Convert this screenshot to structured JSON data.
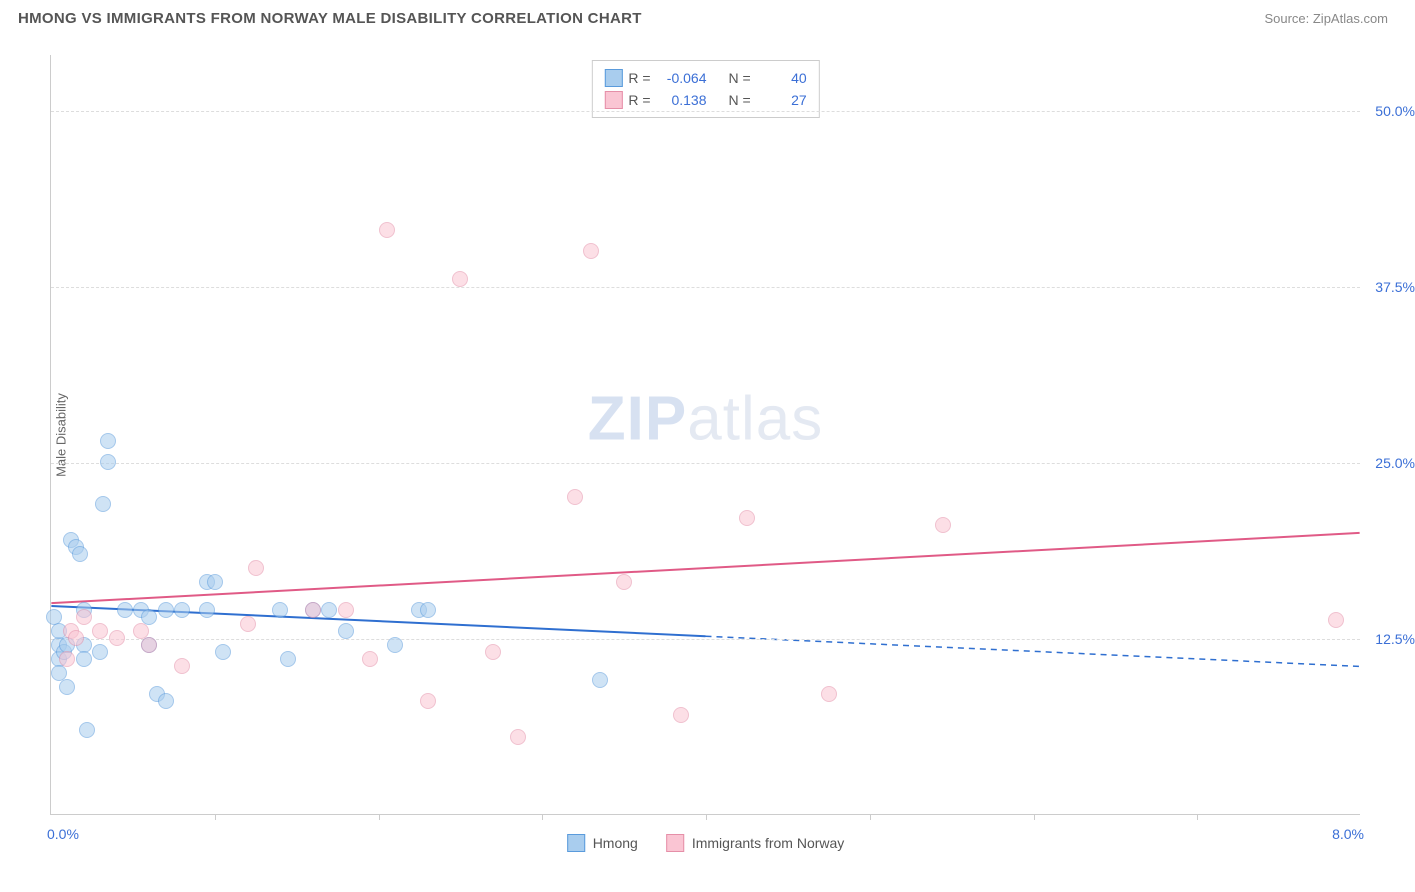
{
  "header": {
    "title": "HMONG VS IMMIGRANTS FROM NORWAY MALE DISABILITY CORRELATION CHART",
    "source": "Source: ZipAtlas.com"
  },
  "watermark": {
    "part1": "ZIP",
    "part2": "atlas"
  },
  "chart": {
    "type": "scatter",
    "y_axis_title": "Male Disability",
    "xlim": [
      0.0,
      8.0
    ],
    "ylim": [
      0.0,
      54.0
    ],
    "x_label_min": "0.0%",
    "x_label_max": "8.0%",
    "y_gridlines": [
      12.5,
      25.0,
      37.5,
      50.0
    ],
    "y_tick_labels": [
      "12.5%",
      "25.0%",
      "37.5%",
      "50.0%"
    ],
    "x_ticks": [
      1.0,
      2.0,
      3.0,
      4.0,
      5.0,
      6.0,
      7.0
    ],
    "background_color": "#ffffff",
    "grid_color": "#dddddd",
    "axis_color": "#cccccc",
    "label_color": "#3b6fd6",
    "point_radius": 8,
    "series": [
      {
        "key": "hmong",
        "label": "Hmong",
        "fill": "#a9cdee",
        "stroke": "#5a9bdc",
        "fill_opacity": 0.55,
        "R": "-0.064",
        "N": "40",
        "trend": {
          "y_at_xmin": 14.8,
          "y_at_xmax": 10.5,
          "solid_until_x": 4.0,
          "stroke": "#2f6fd0",
          "width": 2
        },
        "points": [
          [
            0.02,
            14.0
          ],
          [
            0.05,
            12.0
          ],
          [
            0.05,
            11.0
          ],
          [
            0.05,
            10.0
          ],
          [
            0.05,
            13.0
          ],
          [
            0.08,
            11.5
          ],
          [
            0.1,
            9.0
          ],
          [
            0.1,
            12.0
          ],
          [
            0.12,
            19.5
          ],
          [
            0.15,
            19.0
          ],
          [
            0.18,
            18.5
          ],
          [
            0.2,
            14.5
          ],
          [
            0.2,
            12.0
          ],
          [
            0.2,
            11.0
          ],
          [
            0.22,
            6.0
          ],
          [
            0.3,
            11.5
          ],
          [
            0.32,
            22.0
          ],
          [
            0.35,
            26.5
          ],
          [
            0.35,
            25.0
          ],
          [
            0.45,
            14.5
          ],
          [
            0.55,
            14.5
          ],
          [
            0.6,
            14.0
          ],
          [
            0.6,
            12.0
          ],
          [
            0.65,
            8.5
          ],
          [
            0.7,
            14.5
          ],
          [
            0.7,
            8.0
          ],
          [
            0.8,
            14.5
          ],
          [
            0.95,
            14.5
          ],
          [
            0.95,
            16.5
          ],
          [
            1.0,
            16.5
          ],
          [
            1.05,
            11.5
          ],
          [
            1.4,
            14.5
          ],
          [
            1.45,
            11.0
          ],
          [
            1.6,
            14.5
          ],
          [
            1.7,
            14.5
          ],
          [
            1.8,
            13.0
          ],
          [
            2.1,
            12.0
          ],
          [
            2.25,
            14.5
          ],
          [
            2.3,
            14.5
          ],
          [
            3.35,
            9.5
          ]
        ]
      },
      {
        "key": "norway",
        "label": "Immigrants from Norway",
        "fill": "#fac5d3",
        "stroke": "#e58fa8",
        "fill_opacity": 0.55,
        "R": "0.138",
        "N": "27",
        "trend": {
          "y_at_xmin": 15.0,
          "y_at_xmax": 20.0,
          "solid_until_x": 8.0,
          "stroke": "#e05a86",
          "width": 2
        },
        "points": [
          [
            0.1,
            11.0
          ],
          [
            0.12,
            13.0
          ],
          [
            0.15,
            12.5
          ],
          [
            0.2,
            14.0
          ],
          [
            0.3,
            13.0
          ],
          [
            0.4,
            12.5
          ],
          [
            0.55,
            13.0
          ],
          [
            0.6,
            12.0
          ],
          [
            0.8,
            10.5
          ],
          [
            1.2,
            13.5
          ],
          [
            1.25,
            17.5
          ],
          [
            1.6,
            14.5
          ],
          [
            1.8,
            14.5
          ],
          [
            1.95,
            11.0
          ],
          [
            2.05,
            41.5
          ],
          [
            2.3,
            8.0
          ],
          [
            2.5,
            38.0
          ],
          [
            2.7,
            11.5
          ],
          [
            2.85,
            5.5
          ],
          [
            3.2,
            22.5
          ],
          [
            3.3,
            40.0
          ],
          [
            3.5,
            16.5
          ],
          [
            3.85,
            7.0
          ],
          [
            4.25,
            21.0
          ],
          [
            4.75,
            8.5
          ],
          [
            5.45,
            20.5
          ],
          [
            7.85,
            13.8
          ]
        ]
      }
    ]
  },
  "legend_box": {
    "R_label": "R =",
    "N_label": "N ="
  }
}
